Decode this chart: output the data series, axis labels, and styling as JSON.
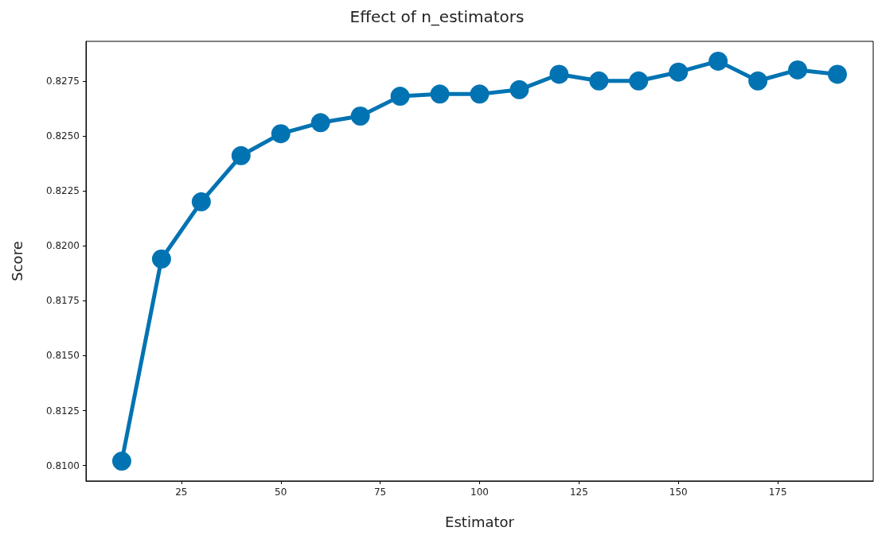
{
  "chart_data": {
    "type": "line",
    "title": "Effect of n_estimators",
    "xlabel": "Estimator",
    "ylabel": "Score",
    "x": [
      10,
      20,
      30,
      40,
      50,
      60,
      70,
      80,
      90,
      100,
      110,
      120,
      130,
      140,
      150,
      160,
      170,
      180,
      190
    ],
    "series": [
      {
        "color": "#0173b2",
        "values": [
          0.8102,
          0.8194,
          0.822,
          0.8241,
          0.8251,
          0.8256,
          0.8259,
          0.8268,
          0.8269,
          0.8269,
          0.8271,
          0.8278,
          0.8275,
          0.8275,
          0.8279,
          0.8284,
          0.8275,
          0.828,
          0.8278
        ]
      }
    ],
    "xlim": [
      1,
      199
    ],
    "xticks": [
      25,
      50,
      75,
      100,
      125,
      150,
      175
    ],
    "ylim": [
      0.8093,
      0.8293
    ],
    "yticks": [
      {
        "value": 0.81,
        "label": "0.8100"
      },
      {
        "value": 0.8125,
        "label": "0.8125"
      },
      {
        "value": 0.815,
        "label": "0.8150"
      },
      {
        "value": 0.8175,
        "label": "0.8175"
      },
      {
        "value": 0.82,
        "label": "0.8200"
      },
      {
        "value": 0.8225,
        "label": "0.8225"
      },
      {
        "value": 0.825,
        "label": "0.8250"
      },
      {
        "value": 0.8275,
        "label": "0.8275"
      }
    ],
    "grid": false,
    "marker": "circle",
    "line_style": "solid"
  }
}
